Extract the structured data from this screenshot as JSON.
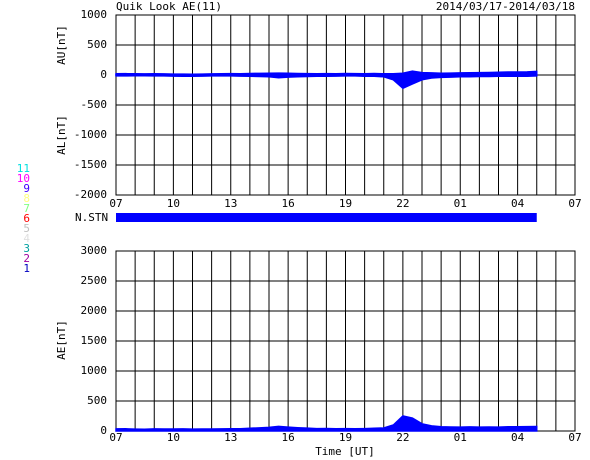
{
  "title": "Quik Look AE(11)",
  "date_range": "2014/03/17-2014/03/18",
  "xlabel": "Time [UT]",
  "station_legend": [
    {
      "label": "11",
      "color": "#00e0e0"
    },
    {
      "label": "10",
      "color": "#ff00ff"
    },
    {
      "label": "9",
      "color": "#4000ff"
    },
    {
      "label": "8",
      "color": "#ffff80"
    },
    {
      "label": "7",
      "color": "#80ff80"
    },
    {
      "label": "6",
      "color": "#ff0000"
    },
    {
      "label": "5",
      "color": "#c0c0c0"
    },
    {
      "label": "4",
      "color": "#e0e0e0"
    },
    {
      "label": "3",
      "color": "#00a0a0"
    },
    {
      "label": "2",
      "color": "#a000a0"
    },
    {
      "label": "1",
      "color": "#0000c0"
    }
  ],
  "station_bar": {
    "label": "N.STN",
    "color": "#0000ff",
    "x": [
      0,
      22
    ]
  },
  "chart_data": [
    {
      "type": "area",
      "xlim": [
        0,
        24
      ],
      "xticks": [
        {
          "value": 0,
          "label": "07"
        },
        {
          "value": 3,
          "label": "10"
        },
        {
          "value": 6,
          "label": "13"
        },
        {
          "value": 9,
          "label": "16"
        },
        {
          "value": 12,
          "label": "19"
        },
        {
          "value": 15,
          "label": "22"
        },
        {
          "value": 18,
          "label": "01"
        },
        {
          "value": 21,
          "label": "04"
        },
        {
          "value": 24,
          "label": "07"
        }
      ],
      "xgrid": [
        0,
        1,
        2,
        3,
        4,
        5,
        6,
        7,
        8,
        9,
        10,
        11,
        12,
        13,
        14,
        15,
        16,
        17,
        18,
        19,
        20,
        21,
        22,
        23,
        24
      ],
      "ylim": [
        -2000,
        1000
      ],
      "yticks": [
        -2000,
        -1500,
        -1000,
        -500,
        0,
        500,
        1000
      ],
      "grid": true,
      "x": [
        0,
        0.5,
        1,
        1.5,
        2,
        2.5,
        3,
        3.5,
        4,
        4.5,
        5,
        5.5,
        6,
        6.5,
        7,
        7.5,
        8,
        8.5,
        9,
        9.5,
        10,
        10.5,
        11,
        11.5,
        12,
        12.5,
        13,
        13.5,
        14,
        14.5,
        15,
        15.5,
        16,
        16.5,
        17,
        17.5,
        18,
        18.5,
        19,
        19.5,
        20,
        20.5,
        21,
        21.5,
        22
      ],
      "series": [
        {
          "name": "AU[nT]",
          "color": "#0000ff",
          "values": [
            20,
            22,
            20,
            18,
            20,
            18,
            15,
            15,
            12,
            15,
            18,
            20,
            22,
            20,
            25,
            28,
            30,
            32,
            30,
            25,
            22,
            20,
            22,
            20,
            25,
            22,
            20,
            25,
            20,
            20,
            30,
            65,
            40,
            35,
            30,
            32,
            35,
            38,
            40,
            42,
            45,
            50,
            50,
            52,
            60
          ]
        },
        {
          "name": "AL[nT]",
          "color": "#0000ff",
          "values": [
            -15,
            -15,
            -12,
            -12,
            -15,
            -15,
            -18,
            -20,
            -20,
            -18,
            -15,
            -15,
            -15,
            -18,
            -20,
            -25,
            -30,
            -45,
            -35,
            -30,
            -25,
            -20,
            -20,
            -18,
            -15,
            -15,
            -20,
            -20,
            -30,
            -80,
            -220,
            -150,
            -80,
            -50,
            -40,
            -35,
            -30,
            -30,
            -25,
            -25,
            -20,
            -20,
            -20,
            -20,
            -15
          ]
        }
      ]
    },
    {
      "type": "area",
      "xlim": [
        0,
        24
      ],
      "xticks": [
        {
          "value": 0,
          "label": "07"
        },
        {
          "value": 3,
          "label": "10"
        },
        {
          "value": 6,
          "label": "13"
        },
        {
          "value": 9,
          "label": "16"
        },
        {
          "value": 12,
          "label": "19"
        },
        {
          "value": 15,
          "label": "22"
        },
        {
          "value": 18,
          "label": "01"
        },
        {
          "value": 21,
          "label": "04"
        },
        {
          "value": 24,
          "label": "07"
        }
      ],
      "xgrid": [
        0,
        1,
        2,
        3,
        4,
        5,
        6,
        7,
        8,
        9,
        10,
        11,
        12,
        13,
        14,
        15,
        16,
        17,
        18,
        19,
        20,
        21,
        22,
        23,
        24
      ],
      "ylim": [
        0,
        3000
      ],
      "yticks": [
        0,
        500,
        1000,
        1500,
        2000,
        2500,
        3000
      ],
      "grid": true,
      "x": [
        0,
        0.5,
        1,
        1.5,
        2,
        2.5,
        3,
        3.5,
        4,
        4.5,
        5,
        5.5,
        6,
        6.5,
        7,
        7.5,
        8,
        8.5,
        9,
        9.5,
        10,
        10.5,
        11,
        11.5,
        12,
        12.5,
        13,
        13.5,
        14,
        14.5,
        15,
        15.5,
        16,
        16.5,
        17,
        17.5,
        18,
        18.5,
        19,
        19.5,
        20,
        20.5,
        21,
        21.5,
        22
      ],
      "series": [
        {
          "name": "AE[nT]",
          "color": "#0000ff",
          "values": [
            35,
            37,
            32,
            30,
            35,
            33,
            33,
            35,
            32,
            33,
            33,
            35,
            37,
            38,
            45,
            53,
            60,
            77,
            65,
            55,
            47,
            40,
            42,
            38,
            40,
            37,
            40,
            45,
            50,
            100,
            250,
            215,
            120,
            85,
            70,
            67,
            65,
            68,
            65,
            67,
            65,
            70,
            70,
            72,
            75
          ]
        }
      ]
    }
  ]
}
